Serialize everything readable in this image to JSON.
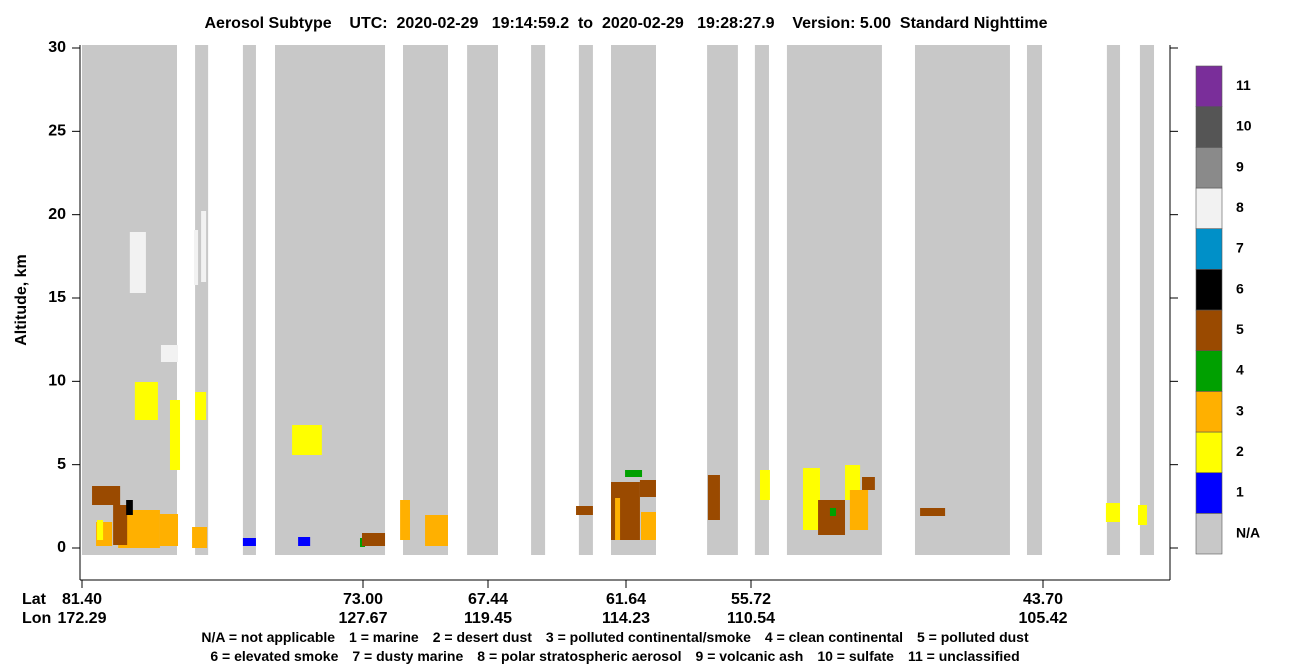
{
  "chart_data": {
    "type": "curtain",
    "title": "Aerosol Subtype    UTC:  2020-02-29   19:14:59.2  to  2020-02-29   19:28:27.9    Version: 5.00  Standard Nighttime",
    "y_label": "Altitude, km",
    "ylim": [
      -1.92,
      30.18
    ],
    "yticks": [
      0,
      5,
      10,
      15,
      20,
      25,
      30
    ],
    "x_label": "Lat",
    "x2_label": "Lon",
    "xticks": [
      {
        "value": 81.4,
        "label": "81.40"
      },
      {
        "value": 73.0,
        "label": "73.00"
      },
      {
        "value": 67.44,
        "label": "67.44"
      },
      {
        "value": 61.64,
        "label": "61.64"
      },
      {
        "value": 55.72,
        "label": "55.72"
      },
      {
        "value": 43.7,
        "label": "43.70"
      }
    ],
    "x2ticklabels": [
      "172.29",
      "127.67",
      "119.45",
      "114.23",
      "110.54",
      "105.42"
    ],
    "colorbar": {
      "categories": [
        "N/A",
        "1",
        "2",
        "3",
        "4",
        "5",
        "6",
        "7",
        "8",
        "9",
        "10",
        "11"
      ],
      "colors": [
        "#c8c8c8",
        "#0000ff",
        "#ffff00",
        "#ffb000",
        "#00a000",
        "#9a4a00",
        "#000000",
        "#0090c8",
        "#f2f2f2",
        "#8a8a8a",
        "#555555",
        "#7a2e9a"
      ]
    },
    "legend_lines": [
      [
        "N/A = not applicable",
        "1 = marine",
        "2 = desert dust",
        "3 = polluted continental/smoke",
        "4 = clean continental",
        "5 = polluted dust"
      ],
      [
        "6 = elevated smoke",
        "7 = dusty marine",
        "8 = polar stratospheric aerosol",
        "9 = volcanic ash",
        "10 = sulfate",
        "11 = unclassified"
      ]
    ],
    "features": [
      {
        "subtype": 0,
        "x": [
          81.4,
          78.56
        ],
        "y": [
          -0.42,
          30.18
        ]
      },
      {
        "subtype": 0,
        "x": [
          78.02,
          77.63
        ],
        "y": [
          -0.42,
          30.18
        ]
      },
      {
        "subtype": 0,
        "x": [
          76.59,
          76.2
        ],
        "y": [
          -0.42,
          30.18
        ]
      },
      {
        "subtype": 0,
        "x": [
          75.63,
          72.02
        ],
        "y": [
          -0.42,
          30.18
        ]
      },
      {
        "subtype": 0,
        "x": [
          71.22,
          69.22
        ],
        "y": [
          -0.42,
          30.18
        ]
      },
      {
        "subtype": 0,
        "x": [
          68.37,
          67.02
        ],
        "y": [
          -0.42,
          30.18
        ]
      },
      {
        "subtype": 0,
        "x": [
          65.63,
          65.04
        ],
        "y": [
          -0.42,
          30.18
        ]
      },
      {
        "subtype": 0,
        "x": [
          63.62,
          63.03
        ],
        "y": [
          -0.42,
          30.18
        ]
      },
      {
        "subtype": 0,
        "x": [
          62.27,
          60.22
        ],
        "y": [
          -0.42,
          30.18
        ]
      },
      {
        "subtype": 0,
        "x": [
          57.8,
          56.34
        ],
        "y": [
          -0.42,
          30.18
        ]
      },
      {
        "subtype": 0,
        "x": [
          55.56,
          54.98
        ],
        "y": [
          -0.42,
          30.18
        ]
      },
      {
        "subtype": 0,
        "x": [
          54.24,
          50.33
        ],
        "y": [
          -0.42,
          30.18
        ]
      },
      {
        "subtype": 0,
        "x": [
          48.97,
          45.06
        ],
        "y": [
          -0.42,
          30.18
        ]
      },
      {
        "subtype": 0,
        "x": [
          44.36,
          43.74
        ],
        "y": [
          -0.42,
          30.18
        ]
      },
      {
        "subtype": 0,
        "x": [
          41.07,
          40.53
        ],
        "y": [
          -0.42,
          30.18
        ]
      },
      {
        "subtype": 0,
        "x": [
          39.71,
          39.13
        ],
        "y": [
          -0.42,
          30.18
        ]
      },
      {
        "subtype": 8,
        "x": [
          79.97,
          79.49
        ],
        "y": [
          15.3,
          18.96
        ]
      },
      {
        "subtype": 8,
        "x": [
          79.04,
          78.53
        ],
        "y": [
          11.16,
          12.18
        ]
      },
      {
        "subtype": 8,
        "x": [
          78.05,
          77.93
        ],
        "y": [
          15.78,
          19.08
        ]
      },
      {
        "subtype": 8,
        "x": [
          77.84,
          77.69
        ],
        "y": [
          15.96,
          20.22
        ]
      },
      {
        "subtype": 5,
        "x": [
          81.1,
          80.26
        ],
        "y": [
          2.58,
          3.72
        ]
      },
      {
        "subtype": 3,
        "x": [
          80.98,
          80.5
        ],
        "y": [
          0.12,
          1.56
        ]
      },
      {
        "subtype": 2,
        "x": [
          80.95,
          80.77
        ],
        "y": [
          0.48,
          1.68
        ]
      },
      {
        "subtype": 3,
        "x": [
          80.32,
          79.07
        ],
        "y": [
          0.0,
          2.28
        ]
      },
      {
        "subtype": 5,
        "x": [
          80.47,
          80.05
        ],
        "y": [
          0.18,
          2.58
        ]
      },
      {
        "subtype": 6,
        "x": [
          80.08,
          79.88
        ],
        "y": [
          1.98,
          2.88
        ]
      },
      {
        "subtype": 3,
        "x": [
          79.07,
          78.53
        ],
        "y": [
          0.12,
          2.04
        ]
      },
      {
        "subtype": 3,
        "x": [
          78.11,
          77.66
        ],
        "y": [
          0.0,
          1.26
        ]
      },
      {
        "subtype": 2,
        "x": [
          78.77,
          78.47
        ],
        "y": [
          4.68,
          8.88
        ]
      },
      {
        "subtype": 2,
        "x": [
          78.02,
          77.69
        ],
        "y": [
          7.68,
          9.36
        ]
      },
      {
        "subtype": 2,
        "x": [
          79.82,
          79.13
        ],
        "y": [
          7.68,
          9.96
        ]
      },
      {
        "subtype": 1,
        "x": [
          76.59,
          76.2
        ],
        "y": [
          0.12,
          0.6
        ]
      },
      {
        "subtype": 1,
        "x": [
          74.94,
          74.58
        ],
        "y": [
          0.12,
          0.66
        ]
      },
      {
        "subtype": 2,
        "x": [
          75.12,
          74.23
        ],
        "y": [
          5.58,
          7.38
        ]
      },
      {
        "subtype": 4,
        "x": [
          73.09,
          72.91
        ],
        "y": [
          0.06,
          0.6
        ]
      },
      {
        "subtype": 5,
        "x": [
          73.03,
          72.02
        ],
        "y": [
          0.12,
          0.9
        ]
      },
      {
        "subtype": 3,
        "x": [
          71.35,
          70.91
        ],
        "y": [
          0.48,
          2.88
        ]
      },
      {
        "subtype": 3,
        "x": [
          70.24,
          69.22
        ],
        "y": [
          0.12,
          1.98
        ]
      },
      {
        "subtype": 5,
        "x": [
          63.74,
          63.03
        ],
        "y": [
          1.98,
          2.52
        ]
      },
      {
        "subtype": 5,
        "x": [
          62.27,
          60.98
        ],
        "y": [
          0.48,
          3.96
        ]
      },
      {
        "subtype": 5,
        "x": [
          60.98,
          60.22
        ],
        "y": [
          3.06,
          4.08
        ]
      },
      {
        "subtype": 3,
        "x": [
          60.93,
          60.22
        ],
        "y": [
          0.48,
          2.16
        ]
      },
      {
        "subtype": 3,
        "x": [
          62.1,
          61.89
        ],
        "y": [
          0.48,
          3.0
        ]
      },
      {
        "subtype": 4,
        "x": [
          61.68,
          60.88
        ],
        "y": [
          4.26,
          4.68
        ]
      },
      {
        "subtype": 5,
        "x": [
          57.76,
          57.19
        ],
        "y": [
          1.68,
          4.38
        ]
      },
      {
        "subtype": 2,
        "x": [
          55.35,
          54.94
        ],
        "y": [
          2.88,
          4.68
        ]
      },
      {
        "subtype": 2,
        "x": [
          53.58,
          52.88
        ],
        "y": [
          1.08,
          4.8
        ]
      },
      {
        "subtype": 5,
        "x": [
          52.96,
          51.85
        ],
        "y": [
          0.78,
          2.88
        ]
      },
      {
        "subtype": 4,
        "x": [
          52.47,
          52.22
        ],
        "y": [
          1.92,
          2.4
        ]
      },
      {
        "subtype": 2,
        "x": [
          51.85,
          51.23
        ],
        "y": [
          2.88,
          4.98
        ]
      },
      {
        "subtype": 3,
        "x": [
          51.65,
          50.9
        ],
        "y": [
          1.08,
          3.48
        ]
      },
      {
        "subtype": 5,
        "x": [
          51.15,
          50.62
        ],
        "y": [
          3.48,
          4.26
        ]
      },
      {
        "subtype": 5,
        "x": [
          48.76,
          47.73
        ],
        "y": [
          1.92,
          2.4
        ]
      },
      {
        "subtype": 2,
        "x": [
          41.11,
          40.53
        ],
        "y": [
          1.56,
          2.7
        ]
      },
      {
        "subtype": 2,
        "x": [
          39.79,
          39.42
        ],
        "y": [
          1.38,
          2.58
        ]
      }
    ]
  }
}
